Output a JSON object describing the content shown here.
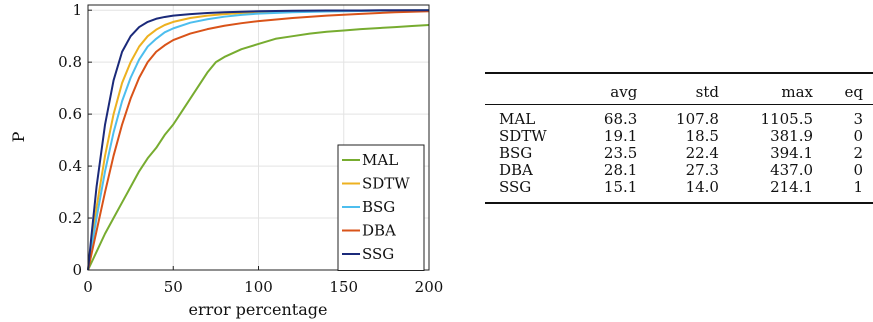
{
  "chart_data": {
    "type": "line",
    "xlabel": "error percentage",
    "ylabel": "P",
    "xlim": [
      0,
      200
    ],
    "ylim": [
      0,
      1.02
    ],
    "xticks": [
      0,
      50,
      100,
      150,
      200
    ],
    "yticks": [
      0,
      0.2,
      0.4,
      0.6,
      0.8,
      1
    ],
    "yticklabels": [
      "0",
      "0.2",
      "0.4",
      "0.6",
      "0.8",
      "1"
    ],
    "grid": true,
    "legend_position": "bottom-right",
    "series": [
      {
        "name": "MAL",
        "color": "#77ac30",
        "x": [
          0,
          5,
          10,
          15,
          20,
          25,
          30,
          35,
          40,
          45,
          50,
          55,
          60,
          65,
          70,
          75,
          80,
          85,
          90,
          100,
          110,
          120,
          130,
          140,
          150,
          160,
          170,
          180,
          190,
          200
        ],
        "y": [
          0,
          0.07,
          0.14,
          0.2,
          0.26,
          0.32,
          0.38,
          0.43,
          0.47,
          0.52,
          0.56,
          0.61,
          0.66,
          0.71,
          0.76,
          0.8,
          0.82,
          0.835,
          0.85,
          0.87,
          0.89,
          0.9,
          0.91,
          0.917,
          0.922,
          0.927,
          0.931,
          0.935,
          0.939,
          0.943
        ]
      },
      {
        "name": "SDTW",
        "color": "#edb120",
        "x": [
          0,
          2,
          5,
          10,
          15,
          20,
          25,
          30,
          35,
          40,
          45,
          50,
          60,
          70,
          80,
          90,
          100,
          120,
          140,
          160,
          180,
          200
        ],
        "y": [
          0,
          0.1,
          0.24,
          0.44,
          0.6,
          0.72,
          0.8,
          0.86,
          0.9,
          0.925,
          0.943,
          0.955,
          0.97,
          0.979,
          0.985,
          0.989,
          0.992,
          0.995,
          0.997,
          0.998,
          0.999,
          1.0
        ]
      },
      {
        "name": "BSG",
        "color": "#4dbeee",
        "x": [
          0,
          2,
          5,
          10,
          15,
          20,
          25,
          30,
          35,
          40,
          45,
          50,
          60,
          70,
          80,
          90,
          100,
          120,
          140,
          160,
          180,
          200
        ],
        "y": [
          0,
          0.08,
          0.2,
          0.38,
          0.53,
          0.65,
          0.74,
          0.81,
          0.86,
          0.89,
          0.915,
          0.93,
          0.952,
          0.965,
          0.975,
          0.982,
          0.987,
          0.992,
          0.995,
          0.997,
          0.999,
          1.0
        ]
      },
      {
        "name": "DBA",
        "color": "#d95319",
        "x": [
          0,
          2,
          5,
          10,
          15,
          20,
          25,
          30,
          35,
          40,
          45,
          50,
          60,
          70,
          80,
          90,
          100,
          120,
          140,
          160,
          180,
          200
        ],
        "y": [
          0,
          0.06,
          0.15,
          0.3,
          0.44,
          0.56,
          0.66,
          0.74,
          0.8,
          0.84,
          0.865,
          0.885,
          0.91,
          0.927,
          0.94,
          0.95,
          0.958,
          0.97,
          0.979,
          0.986,
          0.992,
          0.996
        ]
      },
      {
        "name": "SSG",
        "color": "#1b2a7a",
        "x": [
          0,
          2,
          5,
          10,
          15,
          20,
          25,
          30,
          35,
          40,
          45,
          50,
          60,
          70,
          80,
          90,
          100,
          120,
          140,
          160,
          180,
          200
        ],
        "y": [
          0,
          0.13,
          0.32,
          0.56,
          0.73,
          0.84,
          0.9,
          0.935,
          0.955,
          0.967,
          0.974,
          0.979,
          0.985,
          0.989,
          0.992,
          0.994,
          0.996,
          0.998,
          0.999,
          0.999,
          1.0,
          1.0
        ]
      }
    ]
  },
  "table": {
    "headers": [
      "",
      "avg",
      "std",
      "max",
      "eq"
    ],
    "rows": [
      [
        "MAL",
        "68.3",
        "107.8",
        "1105.5",
        "3"
      ],
      [
        "SDTW",
        "19.1",
        "18.5",
        "381.9",
        "0"
      ],
      [
        "BSG",
        "23.5",
        "22.4",
        "394.1",
        "2"
      ],
      [
        "DBA",
        "28.1",
        "27.3",
        "437.0",
        "0"
      ],
      [
        "SSG",
        "15.1",
        "14.0",
        "214.1",
        "1"
      ]
    ]
  }
}
